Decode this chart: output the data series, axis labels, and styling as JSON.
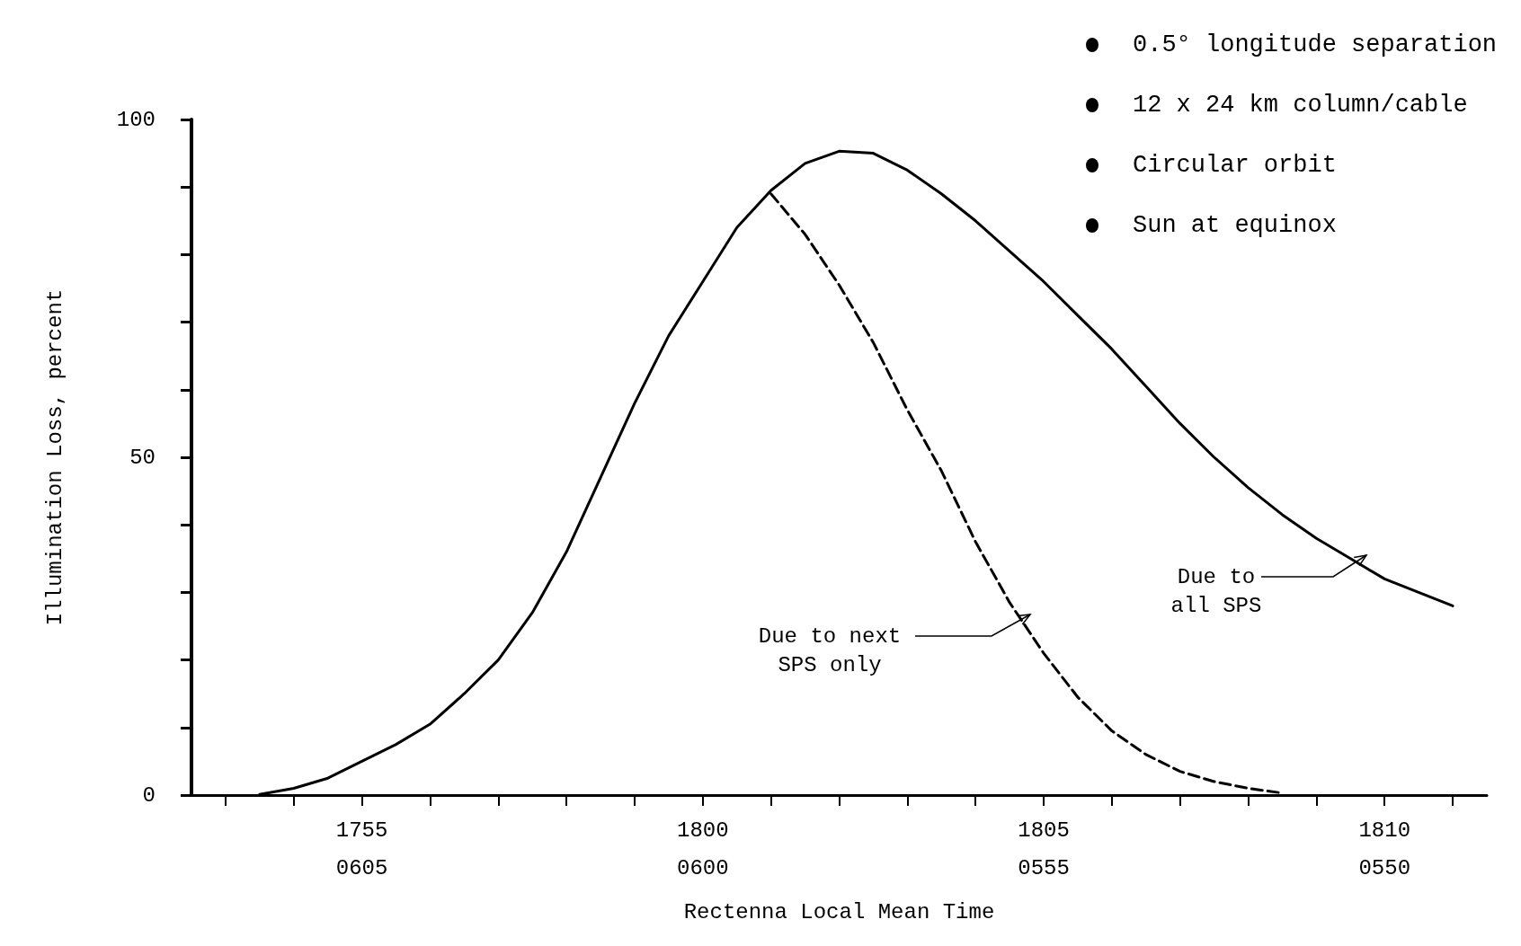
{
  "chart_data": {
    "type": "line",
    "xlabel": "Rectenna Local Mean Time",
    "ylabel": "Illumination Loss, percent",
    "categories": [
      null,
      null,
      null,
      null,
      null,
      "1755\n0605",
      null,
      null,
      null,
      null,
      null,
      null,
      null,
      null,
      null,
      "1800\n0600",
      null,
      null,
      null,
      null,
      null,
      null,
      null,
      null,
      null,
      "1805\n0555",
      null,
      null,
      null,
      null,
      null,
      null,
      null,
      null,
      null,
      "1810\n0550",
      null,
      null,
      null
    ],
    "ylim": [
      0,
      100
    ],
    "yticks": [
      0,
      {
        "value": 10,
        "label": null
      },
      {
        "value": 20,
        "label": null
      },
      {
        "value": 30,
        "label": null
      },
      {
        "value": 40,
        "label": null
      },
      50,
      {
        "value": 60,
        "label": null
      },
      {
        "value": 70,
        "label": null
      },
      {
        "value": 80,
        "label": null
      },
      {
        "value": 90,
        "label": null
      },
      100
    ],
    "marker": "none",
    "series": [
      {
        "color": "#000000",
        "line_style": "solid",
        "values": [
          null,
          null,
          0.1,
          1,
          2.5,
          5,
          7.5,
          10.5,
          15,
          20,
          27,
          36,
          47,
          58,
          68,
          76,
          84,
          89.5,
          93.5,
          95.3,
          95,
          92.5,
          89,
          85,
          80.5,
          76,
          71,
          66,
          60.5,
          55,
          50,
          45.5,
          41.5,
          38,
          35,
          32,
          30,
          28,
          null
        ]
      },
      {
        "color": "#000000",
        "line_style": "dashed",
        "values": [
          null,
          null,
          null,
          null,
          null,
          null,
          null,
          null,
          null,
          null,
          null,
          null,
          null,
          null,
          null,
          null,
          null,
          89,
          83,
          75.5,
          67,
          57,
          48,
          37.5,
          28.5,
          21,
          14.5,
          9.5,
          6,
          3.5,
          2,
          1,
          0.3,
          null,
          null,
          null,
          null,
          null,
          null
        ]
      }
    ],
    "annotations": [
      "0.5° longitude separation",
      "12 x 24 km column/cable",
      "Circular orbit",
      "Sun at equinox",
      "Due to next\nSPS only",
      "Due to\nall SPS"
    ]
  }
}
